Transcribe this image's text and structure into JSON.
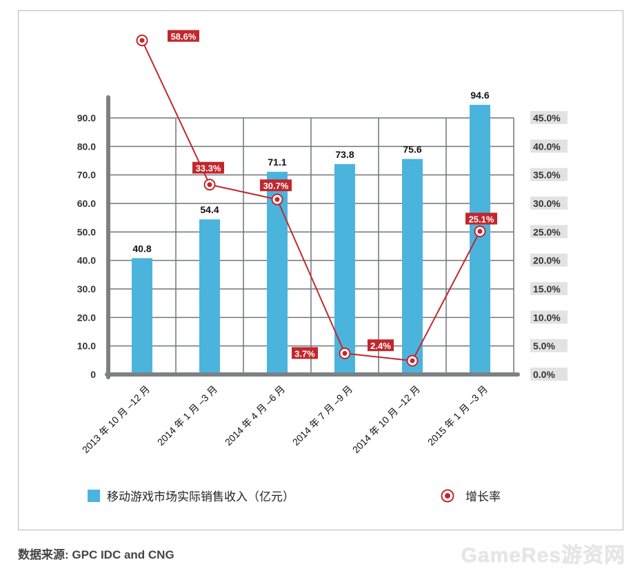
{
  "chart_data": {
    "type": "bar",
    "categories": [
      "2013 年 10 月 –12 月",
      "2014 年 1 月 –3 月",
      "2014 年 4 月 –6 月",
      "2014 年 7 月 –9 月",
      "2014 年 10 月 –12 月",
      "2015 年 1 月 –3 月"
    ],
    "series": [
      {
        "name": "移动游戏市场实际销售收入（亿元）",
        "type": "bar",
        "axis": "left",
        "values": [
          40.8,
          54.4,
          71.1,
          73.8,
          75.6,
          94.6
        ],
        "labels": [
          "40.8",
          "54.4",
          "71.1",
          "73.8",
          "75.6",
          "94.6"
        ],
        "color": "#4bb4dd"
      },
      {
        "name": "增长率",
        "type": "line",
        "axis": "right",
        "values": [
          58.6,
          33.3,
          30.7,
          3.7,
          2.4,
          25.1
        ],
        "labels": [
          "58.6%",
          "33.3%",
          "30.7%",
          "3.7%",
          "2.4%",
          "25.1%"
        ],
        "color": "#c1272d"
      }
    ],
    "y_left": {
      "ylim": [
        0,
        90
      ],
      "ticks": [
        "0",
        "10.0",
        "20.0",
        "30.0",
        "40.0",
        "50.0",
        "60.0",
        "70.0",
        "80.0",
        "90.0"
      ]
    },
    "y_right": {
      "ylim": [
        0,
        45
      ],
      "ticks": [
        "0.0%",
        "5.0%",
        "10.0%",
        "15.0%",
        "20.0%",
        "25.0%",
        "30.0%",
        "35.0%",
        "40.0%",
        "45.0%"
      ]
    },
    "grid": true,
    "legend_position": "bottom"
  },
  "source": "数据来源: GPC IDC and CNG",
  "watermark": "GameRes游资网"
}
